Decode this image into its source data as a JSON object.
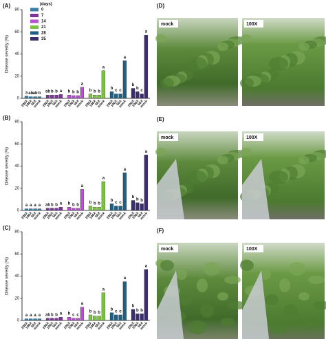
{
  "chart_data": {
    "type": "bar",
    "ylabel": "Disease severity (%)",
    "legend_title": "(days)",
    "categories": [
      "200X",
      "100X",
      "50X",
      "mock"
    ],
    "ylim": [
      0,
      80
    ],
    "yticks": [
      0,
      20,
      40,
      60,
      80
    ],
    "series": [
      {
        "name": "0",
        "color": "#3a7ca5"
      },
      {
        "name": "7",
        "color": "#7a3596"
      },
      {
        "name": "14",
        "color": "#b64fd0"
      },
      {
        "name": "21",
        "color": "#7cc242"
      },
      {
        "name": "28",
        "color": "#1f5f82"
      },
      {
        "name": "35",
        "color": "#3b2d6e"
      }
    ],
    "panels": [
      {
        "label": "(A)",
        "series": [
          {
            "values": [
              2,
              1.5,
              1.5,
              1.5
            ],
            "letters": [
              "a",
              "ab",
              "ab",
              "b"
            ]
          },
          {
            "values": [
              3,
              3,
              3,
              3.5
            ],
            "letters": [
              "ab",
              "b",
              "b",
              "a"
            ]
          },
          {
            "values": [
              3,
              2.5,
              2.5,
              10
            ],
            "letters": [
              "b",
              "b",
              "b",
              "a"
            ]
          },
          {
            "values": [
              4,
              3,
              3,
              25
            ],
            "letters": [
              "b",
              "b",
              "b",
              "a"
            ]
          },
          {
            "values": [
              6,
              4,
              4,
              34
            ],
            "letters": [
              "b",
              "c",
              "c",
              "a"
            ]
          },
          {
            "values": [
              9,
              6,
              4,
              57
            ],
            "letters": [
              "b",
              "b",
              "c",
              "a"
            ]
          }
        ]
      },
      {
        "label": "(B)",
        "series": [
          {
            "values": [
              1.5,
              1.5,
              1.5,
              1.5
            ],
            "letters": [
              "a",
              "a",
              "a",
              "a"
            ]
          },
          {
            "values": [
              2,
              2,
              2,
              3
            ],
            "letters": [
              "ab",
              "b",
              "b",
              "a"
            ]
          },
          {
            "values": [
              3,
              2,
              2,
              19
            ],
            "letters": [
              "b",
              "b",
              "b",
              "a"
            ]
          },
          {
            "values": [
              4,
              3,
              3,
              26
            ],
            "letters": [
              "b",
              "b",
              "b",
              "a"
            ]
          },
          {
            "values": [
              6,
              4,
              4,
              34
            ],
            "letters": [
              "b",
              "c",
              "c",
              "a"
            ]
          },
          {
            "values": [
              9,
              7,
              6,
              50
            ],
            "letters": [
              "b",
              "b",
              "b",
              "a"
            ]
          }
        ]
      },
      {
        "label": "(C)",
        "series": [
          {
            "values": [
              1.5,
              1.5,
              1.5,
              1.5
            ],
            "letters": [
              "a",
              "a",
              "a",
              "a"
            ]
          },
          {
            "values": [
              2,
              2,
              2,
              3
            ],
            "letters": [
              "ab",
              "b",
              "b",
              "a"
            ]
          },
          {
            "values": [
              3,
              2,
              2,
              12
            ],
            "letters": [
              "b",
              "c",
              "c",
              "a"
            ]
          },
          {
            "values": [
              5,
              4,
              4,
              25
            ],
            "letters": [
              "b",
              "b",
              "b",
              "a"
            ]
          },
          {
            "values": [
              7,
              5,
              5,
              35
            ],
            "letters": [
              "b",
              "c",
              "c",
              "a"
            ]
          },
          {
            "values": [
              10,
              6,
              6,
              46
            ],
            "letters": [
              "b",
              "b",
              "b",
              "a"
            ]
          }
        ]
      }
    ]
  },
  "photo_panels": [
    {
      "label": "(D)",
      "photos": [
        "mock",
        "100X"
      ]
    },
    {
      "label": "(E)",
      "photos": [
        "mock",
        "100X"
      ]
    },
    {
      "label": "(F)",
      "photos": [
        "mock",
        "100X"
      ]
    }
  ]
}
